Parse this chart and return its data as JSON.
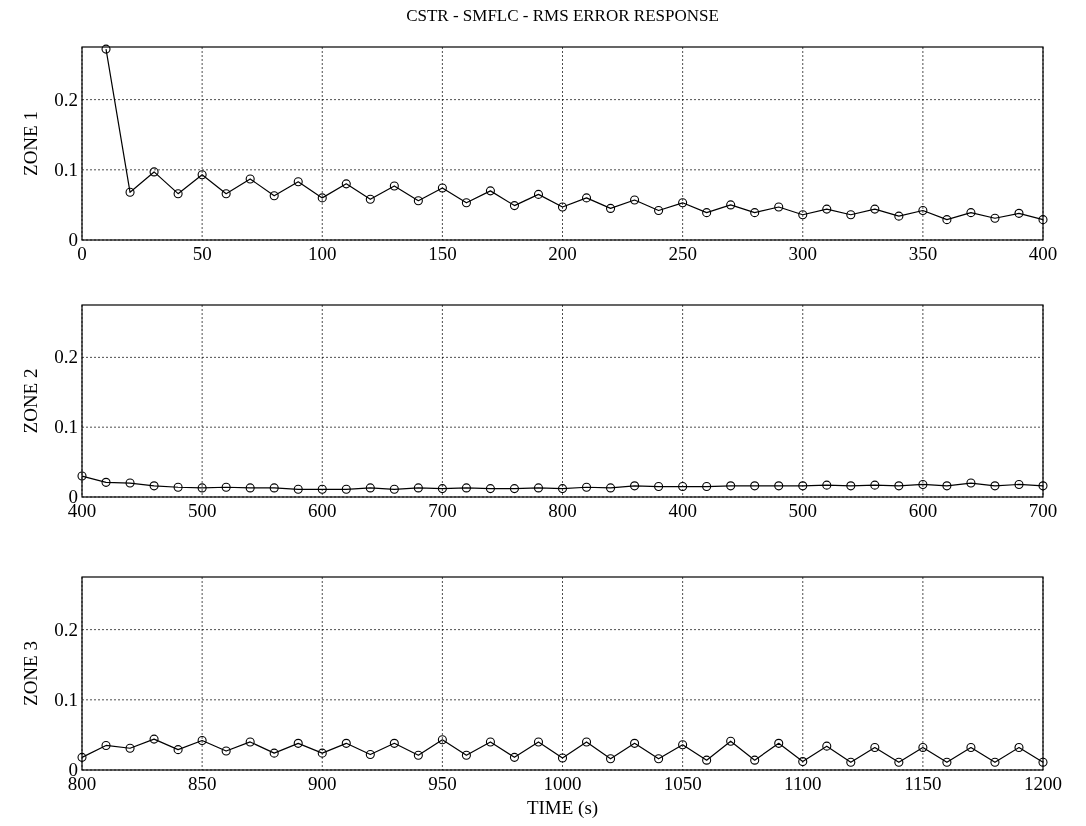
{
  "chart_data": [
    {
      "type": "line",
      "title": "CSTR - SMFLC - RMS ERROR RESPONSE",
      "ylabel": "ZONE 1",
      "xlim": [
        0,
        400
      ],
      "xticks": [
        0,
        50,
        100,
        150,
        200,
        250,
        300,
        350,
        400
      ],
      "ylim": [
        0,
        0.275
      ],
      "yticks": [
        0,
        0.1,
        0.2
      ],
      "grid": true,
      "marker": "circle",
      "line_style": "solid",
      "series": [
        {
          "color": "#000000",
          "x": [
            10,
            20,
            30,
            40,
            50,
            60,
            70,
            80,
            90,
            100,
            110,
            120,
            130,
            140,
            150,
            160,
            170,
            180,
            190,
            200,
            210,
            220,
            230,
            240,
            250,
            260,
            270,
            280,
            290,
            300,
            310,
            320,
            330,
            340,
            350,
            360,
            370,
            380,
            390,
            400
          ],
          "values": [
            0.272,
            0.068,
            0.097,
            0.066,
            0.093,
            0.066,
            0.087,
            0.063,
            0.083,
            0.06,
            0.08,
            0.058,
            0.077,
            0.056,
            0.074,
            0.053,
            0.07,
            0.049,
            0.065,
            0.047,
            0.06,
            0.045,
            0.057,
            0.042,
            0.053,
            0.039,
            0.05,
            0.039,
            0.047,
            0.036,
            0.044,
            0.036,
            0.044,
            0.034,
            0.042,
            0.029,
            0.039,
            0.031,
            0.038,
            0.029
          ]
        }
      ]
    },
    {
      "type": "line",
      "ylabel": "ZONE 2",
      "categories": [
        "400",
        null,
        null,
        null,
        null,
        "500",
        null,
        null,
        null,
        null,
        "600",
        null,
        null,
        null,
        null,
        "700",
        null,
        null,
        null,
        null,
        "800",
        null,
        null,
        null,
        null,
        "400",
        null,
        null,
        null,
        null,
        "500",
        null,
        null,
        null,
        null,
        "600",
        null,
        null,
        null,
        null,
        "700"
      ],
      "ylim": [
        0,
        0.275
      ],
      "yticks": [
        0,
        0.1,
        0.2
      ],
      "grid": true,
      "marker": "circle",
      "line_style": "solid",
      "series": [
        {
          "color": "#000000",
          "values": [
            0.03,
            0.021,
            0.02,
            0.016,
            0.014,
            0.013,
            0.014,
            0.013,
            0.013,
            0.011,
            0.011,
            0.011,
            0.013,
            0.011,
            0.013,
            0.012,
            0.013,
            0.012,
            0.012,
            0.013,
            0.012,
            0.014,
            0.013,
            0.016,
            0.015,
            0.015,
            0.015,
            0.016,
            0.016,
            0.016,
            0.016,
            0.017,
            0.016,
            0.017,
            0.016,
            0.018,
            0.016,
            0.02,
            0.016,
            0.018,
            0.016
          ]
        }
      ]
    },
    {
      "type": "line",
      "xlabel": "TIME (s)",
      "ylabel": "ZONE 3",
      "xlim": [
        800,
        1200
      ],
      "xticks": [
        800,
        850,
        900,
        950,
        1000,
        1050,
        1100,
        1150,
        1200
      ],
      "ylim": [
        0,
        0.275
      ],
      "yticks": [
        0,
        0.1,
        0.2
      ],
      "grid": true,
      "marker": "circle",
      "line_style": "solid",
      "series": [
        {
          "color": "#000000",
          "x": [
            800,
            810,
            820,
            830,
            840,
            850,
            860,
            870,
            880,
            890,
            900,
            910,
            920,
            930,
            940,
            950,
            960,
            970,
            980,
            990,
            1000,
            1010,
            1020,
            1030,
            1040,
            1050,
            1060,
            1070,
            1080,
            1090,
            1100,
            1110,
            1120,
            1130,
            1140,
            1150,
            1160,
            1170,
            1180,
            1190,
            1200
          ],
          "values": [
            0.018,
            0.035,
            0.031,
            0.044,
            0.029,
            0.042,
            0.027,
            0.04,
            0.024,
            0.038,
            0.024,
            0.038,
            0.022,
            0.038,
            0.021,
            0.043,
            0.021,
            0.04,
            0.018,
            0.04,
            0.017,
            0.04,
            0.016,
            0.038,
            0.016,
            0.036,
            0.014,
            0.041,
            0.014,
            0.038,
            0.012,
            0.034,
            0.011,
            0.032,
            0.011,
            0.032,
            0.011,
            0.032,
            0.011,
            0.032,
            0.011
          ]
        }
      ]
    }
  ]
}
